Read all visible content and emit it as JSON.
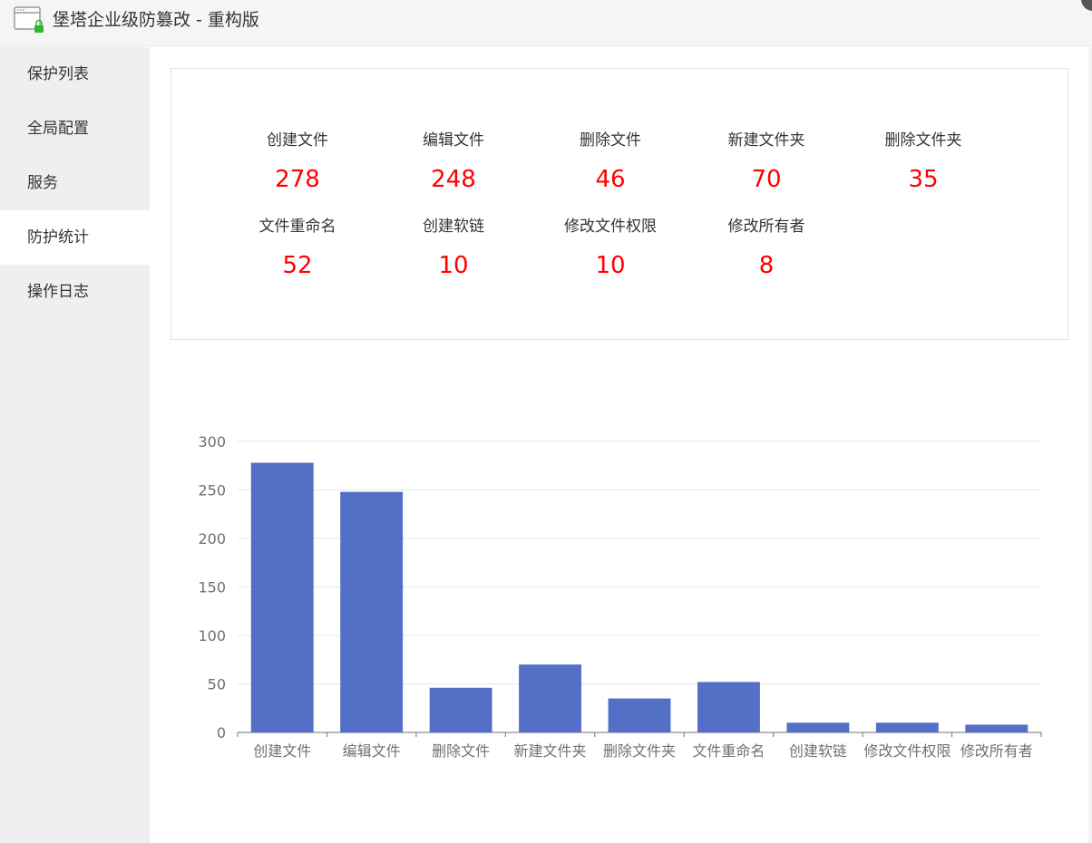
{
  "window": {
    "title": "堡塔企业级防篡改 - 重构版",
    "icon": "browser-lock-icon"
  },
  "sidebar": {
    "items": [
      {
        "label": "保护列表",
        "active": false
      },
      {
        "label": "全局配置",
        "active": false
      },
      {
        "label": "服务",
        "active": false
      },
      {
        "label": "防护统计",
        "active": true
      },
      {
        "label": "操作日志",
        "active": false
      }
    ]
  },
  "stats": [
    {
      "label": "创建文件",
      "value": "278"
    },
    {
      "label": "编辑文件",
      "value": "248"
    },
    {
      "label": "删除文件",
      "value": "46"
    },
    {
      "label": "新建文件夹",
      "value": "70"
    },
    {
      "label": "删除文件夹",
      "value": "35"
    },
    {
      "label": "文件重命名",
      "value": "52"
    },
    {
      "label": "创建软链",
      "value": "10"
    },
    {
      "label": "修改文件权限",
      "value": "10"
    },
    {
      "label": "修改所有者",
      "value": "8"
    }
  ],
  "colors": {
    "accent_value": "#ff0000",
    "bar": "#5470c6",
    "sidebar_bg": "#efefef"
  },
  "chart_data": {
    "type": "bar",
    "categories": [
      "创建文件",
      "编辑文件",
      "删除文件",
      "新建文件夹",
      "删除文件夹",
      "文件重命名",
      "创建软链",
      "修改文件权限",
      "修改所有者"
    ],
    "values": [
      278,
      248,
      46,
      70,
      35,
      52,
      10,
      10,
      8
    ],
    "ylim": [
      0,
      300
    ],
    "yticks": [
      "0",
      "50",
      "100",
      "150",
      "200",
      "250",
      "300"
    ],
    "grid": true,
    "title": "",
    "xlabel": "",
    "ylabel": ""
  }
}
